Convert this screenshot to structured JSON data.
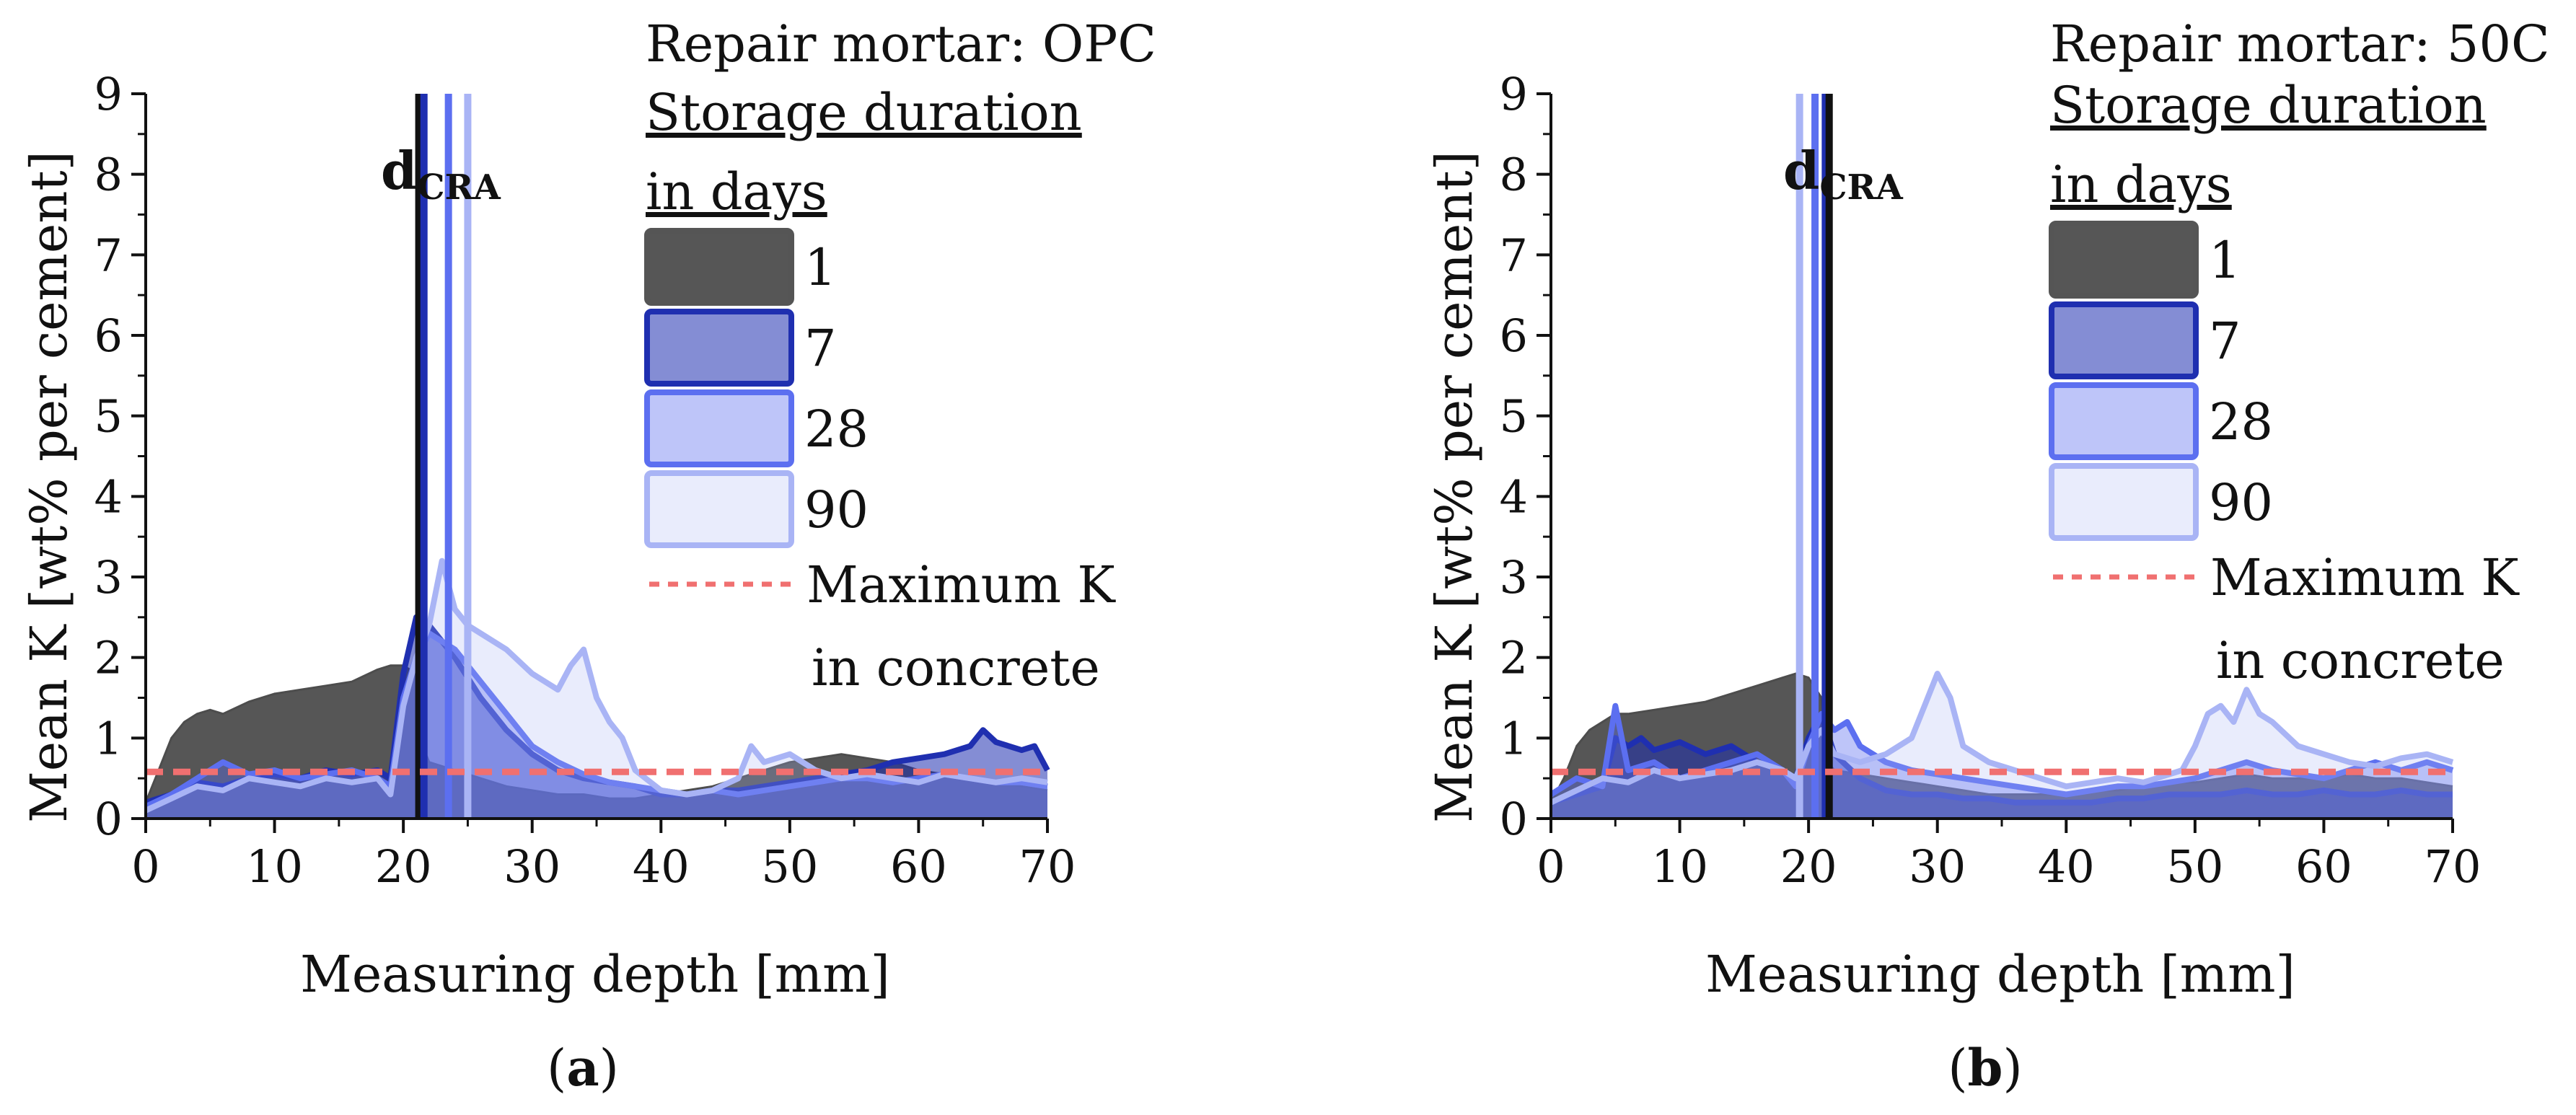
{
  "colors": {
    "d1": "#4d4d4d",
    "d7": "#1f2fb0",
    "d28": "#5c6ff0",
    "d90": "#a9b4f5",
    "maxK": "#f07070",
    "axis": "#111111"
  },
  "charts": [
    {
      "panel": "(a)",
      "panel_letter": "a",
      "mortar_label": "Repair mortar: OPC",
      "legend_heading_1": "Storage duration",
      "legend_heading_2": "in days",
      "legend": [
        "1",
        "7",
        "28",
        "90"
      ],
      "max_k_label_1": "Maximum K",
      "max_k_label_2": "in concrete",
      "dcra_main": "d",
      "dcra_sub": "CRA",
      "xlabel": "Measuring depth [mm]",
      "ylabel": "Mean K [wt% per cement]",
      "xticks": [
        "0",
        "10",
        "20",
        "30",
        "40",
        "50",
        "60",
        "70"
      ],
      "yticks": [
        "0",
        "1",
        "2",
        "3",
        "4",
        "5",
        "6",
        "7",
        "8",
        "9"
      ]
    },
    {
      "panel": "(b)",
      "panel_letter": "b",
      "mortar_label": "Repair mortar: 50C",
      "legend_heading_1": "Storage duration",
      "legend_heading_2": "in days",
      "legend": [
        "1",
        "7",
        "28",
        "90"
      ],
      "max_k_label_1": "Maximum K",
      "max_k_label_2": "in concrete",
      "dcra_main": "d",
      "dcra_sub": "CRA",
      "xlabel": "Measuring depth [mm]",
      "ylabel": "Mean K [wt% per cement]",
      "xticks": [
        "0",
        "10",
        "20",
        "30",
        "40",
        "50",
        "60",
        "70"
      ],
      "yticks": [
        "0",
        "1",
        "2",
        "3",
        "4",
        "5",
        "6",
        "7",
        "8",
        "9"
      ]
    }
  ],
  "chart_data": [
    {
      "type": "area",
      "title": "Repair mortar: OPC",
      "xlabel": "Measuring depth [mm]",
      "ylabel": "Mean K [wt% per cement]",
      "xlim": [
        0,
        70
      ],
      "ylim": [
        0,
        9
      ],
      "legend_title": "Storage duration in days",
      "max_k_concrete": 0.58,
      "dcra": [
        {
          "days": "1",
          "depth": 21.2
        },
        {
          "days": "7",
          "depth": 21.6
        },
        {
          "days": "28",
          "depth": 23.5
        },
        {
          "days": "90",
          "depth": 25.0
        }
      ],
      "series": [
        {
          "name": "1",
          "color_key": "d1",
          "x": [
            0,
            1,
            2,
            3,
            4,
            5,
            6,
            8,
            10,
            12,
            14,
            16,
            18,
            19,
            20,
            21,
            21.5,
            22,
            24,
            26,
            28,
            30,
            32,
            34,
            36,
            38,
            40,
            42,
            44,
            46,
            48,
            50,
            52,
            54,
            56,
            58,
            60,
            62,
            64,
            66,
            68,
            70
          ],
          "y": [
            0.2,
            0.6,
            1.0,
            1.2,
            1.3,
            1.35,
            1.3,
            1.45,
            1.55,
            1.6,
            1.65,
            1.7,
            1.85,
            1.9,
            1.9,
            1.8,
            0.9,
            0.7,
            0.6,
            0.5,
            0.4,
            0.35,
            0.3,
            0.3,
            0.25,
            0.25,
            0.3,
            0.35,
            0.4,
            0.5,
            0.6,
            0.7,
            0.75,
            0.8,
            0.75,
            0.7,
            0.6,
            0.55,
            0.5,
            0.45,
            0.4,
            0.35
          ]
        },
        {
          "name": "7",
          "color_key": "d7",
          "x": [
            0,
            2,
            4,
            6,
            8,
            10,
            12,
            14,
            16,
            18,
            19,
            20,
            21,
            22,
            23,
            24,
            26,
            28,
            30,
            32,
            34,
            36,
            38,
            40,
            42,
            44,
            46,
            48,
            50,
            52,
            54,
            56,
            58,
            60,
            62,
            64,
            65,
            66,
            68,
            69,
            70
          ],
          "y": [
            0.2,
            0.3,
            0.45,
            0.4,
            0.5,
            0.55,
            0.5,
            0.6,
            0.55,
            0.6,
            0.5,
            1.8,
            2.5,
            2.4,
            2.2,
            2.0,
            1.5,
            1.1,
            0.8,
            0.6,
            0.5,
            0.45,
            0.4,
            0.3,
            0.3,
            0.35,
            0.35,
            0.4,
            0.45,
            0.5,
            0.55,
            0.6,
            0.7,
            0.75,
            0.8,
            0.9,
            1.1,
            0.95,
            0.85,
            0.9,
            0.6
          ]
        },
        {
          "name": "28",
          "color_key": "d28",
          "x": [
            0,
            2,
            4,
            6,
            8,
            10,
            12,
            14,
            16,
            18,
            19,
            20,
            21,
            22,
            23,
            24,
            25,
            26,
            28,
            30,
            32,
            34,
            36,
            38,
            40,
            42,
            44,
            46,
            48,
            50,
            52,
            54,
            56,
            58,
            60,
            62,
            64,
            66,
            68,
            70
          ],
          "y": [
            0.15,
            0.3,
            0.5,
            0.7,
            0.55,
            0.6,
            0.5,
            0.55,
            0.6,
            0.5,
            0.4,
            1.5,
            2.0,
            2.3,
            2.2,
            2.1,
            1.9,
            1.7,
            1.3,
            0.9,
            0.7,
            0.55,
            0.45,
            0.4,
            0.35,
            0.3,
            0.35,
            0.3,
            0.35,
            0.4,
            0.45,
            0.5,
            0.5,
            0.45,
            0.5,
            0.55,
            0.5,
            0.45,
            0.45,
            0.4
          ]
        },
        {
          "name": "90",
          "color_key": "d90",
          "x": [
            0,
            2,
            4,
            6,
            8,
            10,
            12,
            14,
            16,
            18,
            19,
            20,
            21,
            22,
            23,
            24,
            25,
            26,
            28,
            30,
            32,
            33,
            34,
            35,
            36,
            37,
            38,
            40,
            42,
            44,
            46,
            47,
            48,
            50,
            52,
            54,
            56,
            58,
            60,
            62,
            64,
            66,
            68,
            70
          ],
          "y": [
            0.1,
            0.25,
            0.4,
            0.35,
            0.5,
            0.45,
            0.4,
            0.5,
            0.45,
            0.5,
            0.3,
            1.4,
            2.0,
            2.4,
            3.2,
            2.6,
            2.4,
            2.3,
            2.1,
            1.8,
            1.6,
            1.9,
            2.1,
            1.5,
            1.2,
            1.0,
            0.6,
            0.35,
            0.3,
            0.35,
            0.5,
            0.9,
            0.7,
            0.8,
            0.6,
            0.5,
            0.55,
            0.5,
            0.45,
            0.55,
            0.5,
            0.45,
            0.5,
            0.45
          ]
        }
      ]
    },
    {
      "type": "area",
      "title": "Repair mortar: 50C",
      "xlabel": "Measuring depth [mm]",
      "ylabel": "Mean K [wt% per cement]",
      "xlim": [
        0,
        70
      ],
      "ylim": [
        0,
        9
      ],
      "legend_title": "Storage duration in days",
      "max_k_concrete": 0.58,
      "dcra": [
        {
          "days": "90",
          "depth": 19.3
        },
        {
          "days": "28",
          "depth": 20.5
        },
        {
          "days": "7",
          "depth": 21.3
        },
        {
          "days": "1",
          "depth": 21.6
        }
      ],
      "series": [
        {
          "name": "1",
          "color_key": "d1",
          "x": [
            0,
            1,
            2,
            3,
            4,
            5,
            6,
            8,
            10,
            12,
            14,
            16,
            18,
            19,
            20,
            21,
            21.5,
            22,
            24,
            26,
            28,
            30,
            32,
            34,
            36,
            38,
            40,
            42,
            44,
            46,
            48,
            50,
            52,
            54,
            56,
            58,
            60,
            62,
            64,
            66,
            68,
            70
          ],
          "y": [
            0.2,
            0.5,
            0.9,
            1.1,
            1.2,
            1.3,
            1.3,
            1.35,
            1.4,
            1.45,
            1.55,
            1.65,
            1.75,
            1.8,
            1.75,
            1.5,
            0.7,
            0.6,
            0.55,
            0.5,
            0.45,
            0.4,
            0.35,
            0.3,
            0.3,
            0.3,
            0.3,
            0.35,
            0.35,
            0.4,
            0.45,
            0.45,
            0.5,
            0.55,
            0.5,
            0.5,
            0.5,
            0.55,
            0.5,
            0.5,
            0.45,
            0.4
          ]
        },
        {
          "name": "7",
          "color_key": "d7",
          "x": [
            0,
            2,
            4,
            5,
            6,
            7,
            8,
            10,
            12,
            14,
            16,
            18,
            19,
            20,
            21,
            22,
            24,
            26,
            28,
            30,
            32,
            34,
            36,
            38,
            40,
            42,
            44,
            46,
            48,
            50,
            52,
            54,
            56,
            58,
            60,
            62,
            64,
            66,
            68,
            70
          ],
          "y": [
            0.2,
            0.3,
            0.4,
            1.0,
            0.9,
            1.0,
            0.85,
            0.95,
            0.8,
            0.9,
            0.7,
            0.6,
            0.5,
            1.0,
            1.3,
            0.8,
            0.5,
            0.35,
            0.3,
            0.3,
            0.25,
            0.25,
            0.2,
            0.2,
            0.2,
            0.2,
            0.25,
            0.25,
            0.3,
            0.3,
            0.3,
            0.35,
            0.3,
            0.3,
            0.35,
            0.3,
            0.3,
            0.35,
            0.3,
            0.3
          ]
        },
        {
          "name": "28",
          "color_key": "d28",
          "x": [
            0,
            2,
            4,
            5,
            6,
            8,
            10,
            12,
            14,
            16,
            18,
            19,
            20,
            21,
            22,
            23,
            24,
            26,
            28,
            30,
            32,
            34,
            36,
            38,
            40,
            42,
            44,
            46,
            48,
            50,
            52,
            54,
            56,
            58,
            60,
            62,
            64,
            66,
            68,
            70
          ],
          "y": [
            0.3,
            0.5,
            0.4,
            1.4,
            0.6,
            0.7,
            0.5,
            0.6,
            0.7,
            0.8,
            0.6,
            0.4,
            0.9,
            1.3,
            1.1,
            1.2,
            0.9,
            0.7,
            0.6,
            0.55,
            0.5,
            0.45,
            0.4,
            0.35,
            0.3,
            0.35,
            0.4,
            0.4,
            0.45,
            0.5,
            0.6,
            0.7,
            0.6,
            0.55,
            0.5,
            0.6,
            0.7,
            0.6,
            0.7,
            0.6
          ]
        },
        {
          "name": "90",
          "color_key": "d90",
          "x": [
            0,
            2,
            4,
            6,
            8,
            10,
            12,
            14,
            16,
            18,
            19,
            20,
            21,
            22,
            24,
            26,
            28,
            29,
            30,
            31,
            32,
            34,
            36,
            38,
            40,
            42,
            44,
            46,
            48,
            49,
            50,
            51,
            52,
            53,
            54,
            55,
            56,
            58,
            60,
            62,
            64,
            66,
            68,
            70
          ],
          "y": [
            0.2,
            0.35,
            0.5,
            0.45,
            0.6,
            0.5,
            0.55,
            0.6,
            0.7,
            0.6,
            0.5,
            0.9,
            1.1,
            0.8,
            0.7,
            0.8,
            1.0,
            1.4,
            1.8,
            1.5,
            0.9,
            0.7,
            0.6,
            0.5,
            0.4,
            0.45,
            0.5,
            0.45,
            0.55,
            0.6,
            0.9,
            1.3,
            1.4,
            1.2,
            1.6,
            1.3,
            1.2,
            0.9,
            0.8,
            0.7,
            0.65,
            0.75,
            0.8,
            0.7
          ]
        }
      ]
    }
  ]
}
